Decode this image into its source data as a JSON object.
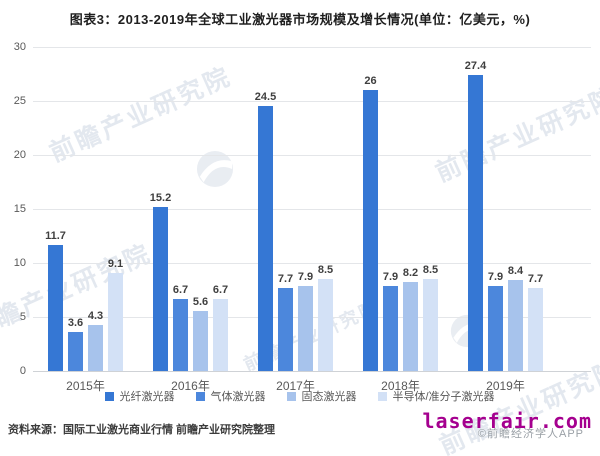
{
  "title": "图表3：2013-2019年全球工业激光器市场规模及增长情况(单位：亿美元，%)",
  "chart_data": {
    "type": "bar",
    "title": "图表3：2013-2019年全球工业激光器市场规模及增长情况(单位：亿美元，%)",
    "categories": [
      "2015年",
      "2016年",
      "2017年",
      "2018年",
      "2019年"
    ],
    "series": [
      {
        "name": "光纤激光器",
        "color": "#3577d4",
        "values": [
          11.7,
          15.2,
          24.5,
          26,
          27.4
        ]
      },
      {
        "name": "气体激光器",
        "color": "#4c87dc",
        "values": [
          3.6,
          6.7,
          7.7,
          7.9,
          7.9
        ]
      },
      {
        "name": "固态激光器",
        "color": "#a7c3ec",
        "values": [
          4.3,
          5.6,
          7.9,
          8.2,
          8.4
        ]
      },
      {
        "name": "半导体/准分子激光器",
        "color": "#d3e1f6",
        "values": [
          9.1,
          6.7,
          8.5,
          8.5,
          7.7
        ]
      }
    ],
    "xlabel": "",
    "ylabel": "",
    "ylim": [
      0,
      30
    ],
    "yticks": [
      0,
      5,
      10,
      15,
      20,
      25,
      30
    ],
    "grid": "horizontal",
    "legend_position": "bottom",
    "data_labels": true
  },
  "footer": {
    "source": "资料来源：国际工业激光商业行情 前瞻产业研究院整理",
    "site": "laserfair.com",
    "copyright": "©前瞻经济学人APP"
  },
  "watermark": {
    "text": "前瞻产业研究院"
  }
}
